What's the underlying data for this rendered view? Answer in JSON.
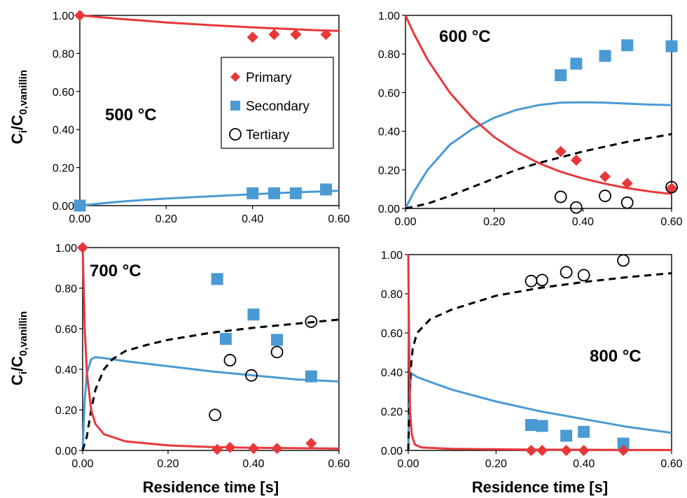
{
  "chart_data": {
    "type": "scatter",
    "ylabel": {
      "main": "C",
      "sub1": "i",
      "mid": "/C",
      "sub2": "0,vanillin"
    },
    "xlabel": "Residence time [s]",
    "legend": {
      "placement": "inside panel 1, right",
      "entries": [
        {
          "name": "Primary",
          "marker": "diamond",
          "color": "#e8373a"
        },
        {
          "name": "Secondary",
          "marker": "square",
          "color": "#4a9ad4"
        },
        {
          "name": "Tertiary",
          "marker": "open-circle",
          "color": "#000000"
        }
      ]
    },
    "colors": {
      "primary": "#e8373a",
      "secondary": "#4a9ad4",
      "tertiary": "#000000"
    },
    "xlim": [
      0,
      0.6
    ],
    "ylim": [
      0,
      1.0
    ],
    "x_ticks": [
      "0.00",
      "0.20",
      "0.40",
      "0.60"
    ],
    "y_ticks": [
      "0.00",
      "0.20",
      "0.40",
      "0.60",
      "0.80",
      "1.00"
    ],
    "panels": [
      {
        "id": "p500",
        "label": "500 °C",
        "show_xlabel": false,
        "primary_points": [
          [
            0.0,
            1.0
          ],
          [
            0.4,
            0.885
          ],
          [
            0.45,
            0.9
          ],
          [
            0.5,
            0.9
          ],
          [
            0.57,
            0.9
          ]
        ],
        "secondary_points": [
          [
            0.0,
            0.0
          ],
          [
            0.4,
            0.065
          ],
          [
            0.45,
            0.065
          ],
          [
            0.5,
            0.065
          ],
          [
            0.57,
            0.085
          ]
        ],
        "tertiary_points": [],
        "primary_curve": [
          [
            0.0,
            1.0
          ],
          [
            0.05,
            0.99
          ],
          [
            0.1,
            0.98
          ],
          [
            0.15,
            0.972
          ],
          [
            0.2,
            0.963
          ],
          [
            0.25,
            0.956
          ],
          [
            0.3,
            0.949
          ],
          [
            0.35,
            0.943
          ],
          [
            0.4,
            0.937
          ],
          [
            0.45,
            0.932
          ],
          [
            0.5,
            0.927
          ],
          [
            0.55,
            0.922
          ],
          [
            0.6,
            0.918
          ]
        ],
        "secondary_curve": [
          [
            0.0,
            0.0
          ],
          [
            0.05,
            0.012
          ],
          [
            0.1,
            0.022
          ],
          [
            0.15,
            0.03
          ],
          [
            0.2,
            0.037
          ],
          [
            0.25,
            0.043
          ],
          [
            0.3,
            0.049
          ],
          [
            0.35,
            0.054
          ],
          [
            0.4,
            0.06
          ],
          [
            0.45,
            0.065
          ],
          [
            0.5,
            0.07
          ],
          [
            0.55,
            0.074
          ],
          [
            0.6,
            0.078
          ]
        ],
        "tertiary_curve": []
      },
      {
        "id": "p600",
        "label": "600 °C",
        "show_xlabel": false,
        "primary_points": [
          [
            0.35,
            0.295
          ],
          [
            0.385,
            0.25
          ],
          [
            0.45,
            0.165
          ],
          [
            0.5,
            0.13
          ],
          [
            0.6,
            0.105
          ]
        ],
        "secondary_points": [
          [
            0.35,
            0.69
          ],
          [
            0.385,
            0.75
          ],
          [
            0.45,
            0.79
          ],
          [
            0.5,
            0.845
          ],
          [
            0.6,
            0.84
          ]
        ],
        "tertiary_points": [
          [
            0.35,
            0.06
          ],
          [
            0.385,
            0.005
          ],
          [
            0.45,
            0.065
          ],
          [
            0.5,
            0.03
          ],
          [
            0.6,
            0.11
          ]
        ],
        "primary_curve": [
          [
            0.0,
            1.0
          ],
          [
            0.02,
            0.9
          ],
          [
            0.05,
            0.77
          ],
          [
            0.1,
            0.6
          ],
          [
            0.15,
            0.47
          ],
          [
            0.2,
            0.37
          ],
          [
            0.25,
            0.295
          ],
          [
            0.3,
            0.235
          ],
          [
            0.35,
            0.19
          ],
          [
            0.4,
            0.155
          ],
          [
            0.45,
            0.128
          ],
          [
            0.5,
            0.105
          ],
          [
            0.55,
            0.088
          ],
          [
            0.6,
            0.075
          ]
        ],
        "secondary_curve": [
          [
            0.0,
            0.0
          ],
          [
            0.02,
            0.09
          ],
          [
            0.05,
            0.2
          ],
          [
            0.1,
            0.33
          ],
          [
            0.15,
            0.41
          ],
          [
            0.2,
            0.47
          ],
          [
            0.25,
            0.51
          ],
          [
            0.3,
            0.535
          ],
          [
            0.35,
            0.548
          ],
          [
            0.4,
            0.55
          ],
          [
            0.45,
            0.548
          ],
          [
            0.5,
            0.543
          ],
          [
            0.55,
            0.538
          ],
          [
            0.6,
            0.535
          ]
        ],
        "tertiary_curve": [
          [
            0.0,
            0.0
          ],
          [
            0.05,
            0.025
          ],
          [
            0.1,
            0.065
          ],
          [
            0.15,
            0.11
          ],
          [
            0.2,
            0.155
          ],
          [
            0.25,
            0.2
          ],
          [
            0.3,
            0.235
          ],
          [
            0.35,
            0.265
          ],
          [
            0.4,
            0.295
          ],
          [
            0.45,
            0.32
          ],
          [
            0.5,
            0.345
          ],
          [
            0.55,
            0.365
          ],
          [
            0.6,
            0.385
          ]
        ]
      },
      {
        "id": "p700",
        "label": "700 °C",
        "show_xlabel": true,
        "primary_points": [
          [
            0.0,
            1.0
          ],
          [
            0.315,
            0.005
          ],
          [
            0.345,
            0.015
          ],
          [
            0.4,
            0.01
          ],
          [
            0.455,
            0.01
          ],
          [
            0.535,
            0.035
          ]
        ],
        "secondary_points": [
          [
            0.315,
            0.845
          ],
          [
            0.335,
            0.55
          ],
          [
            0.4,
            0.67
          ],
          [
            0.455,
            0.545
          ],
          [
            0.535,
            0.365
          ]
        ],
        "tertiary_points": [
          [
            0.31,
            0.175
          ],
          [
            0.345,
            0.445
          ],
          [
            0.395,
            0.37
          ],
          [
            0.455,
            0.485
          ],
          [
            0.535,
            0.635
          ]
        ],
        "primary_curve": [
          [
            0.0,
            1.0
          ],
          [
            0.002,
            0.85
          ],
          [
            0.005,
            0.6
          ],
          [
            0.01,
            0.38
          ],
          [
            0.02,
            0.2
          ],
          [
            0.03,
            0.13
          ],
          [
            0.05,
            0.08
          ],
          [
            0.1,
            0.045
          ],
          [
            0.2,
            0.025
          ],
          [
            0.3,
            0.017
          ],
          [
            0.4,
            0.013
          ],
          [
            0.5,
            0.011
          ],
          [
            0.6,
            0.009
          ]
        ],
        "secondary_curve": [
          [
            0.0,
            0.0
          ],
          [
            0.005,
            0.25
          ],
          [
            0.01,
            0.38
          ],
          [
            0.02,
            0.45
          ],
          [
            0.03,
            0.46
          ],
          [
            0.05,
            0.455
          ],
          [
            0.1,
            0.44
          ],
          [
            0.2,
            0.415
          ],
          [
            0.3,
            0.39
          ],
          [
            0.4,
            0.37
          ],
          [
            0.5,
            0.35
          ],
          [
            0.6,
            0.34
          ]
        ],
        "tertiary_curve": [
          [
            0.0,
            0.0
          ],
          [
            0.01,
            0.07
          ],
          [
            0.02,
            0.2
          ],
          [
            0.03,
            0.3
          ],
          [
            0.05,
            0.4
          ],
          [
            0.07,
            0.45
          ],
          [
            0.1,
            0.49
          ],
          [
            0.15,
            0.52
          ],
          [
            0.2,
            0.545
          ],
          [
            0.3,
            0.58
          ],
          [
            0.4,
            0.605
          ],
          [
            0.5,
            0.625
          ],
          [
            0.6,
            0.645
          ]
        ]
      },
      {
        "id": "p800",
        "label": "800 °C",
        "show_xlabel": true,
        "primary_points": [
          [
            0.28,
            0.0
          ],
          [
            0.305,
            0.0
          ],
          [
            0.36,
            0.0
          ],
          [
            0.4,
            0.0
          ],
          [
            0.49,
            0.0
          ]
        ],
        "secondary_points": [
          [
            0.28,
            0.13
          ],
          [
            0.305,
            0.125
          ],
          [
            0.36,
            0.075
          ],
          [
            0.4,
            0.095
          ],
          [
            0.49,
            0.035
          ]
        ],
        "tertiary_points": [
          [
            0.28,
            0.865
          ],
          [
            0.305,
            0.87
          ],
          [
            0.36,
            0.91
          ],
          [
            0.4,
            0.895
          ],
          [
            0.49,
            0.97
          ]
        ],
        "primary_curve": [
          [
            0.0,
            1.0
          ],
          [
            0.002,
            0.5
          ],
          [
            0.004,
            0.2
          ],
          [
            0.008,
            0.08
          ],
          [
            0.015,
            0.03
          ],
          [
            0.03,
            0.015
          ],
          [
            0.1,
            0.008
          ],
          [
            0.3,
            0.004
          ],
          [
            0.6,
            0.002
          ]
        ],
        "secondary_curve": [
          [
            0.0,
            0.0
          ],
          [
            0.003,
            0.3
          ],
          [
            0.006,
            0.38
          ],
          [
            0.01,
            0.39
          ],
          [
            0.02,
            0.375
          ],
          [
            0.05,
            0.35
          ],
          [
            0.1,
            0.31
          ],
          [
            0.2,
            0.25
          ],
          [
            0.3,
            0.2
          ],
          [
            0.4,
            0.16
          ],
          [
            0.5,
            0.12
          ],
          [
            0.6,
            0.09
          ]
        ],
        "tertiary_curve": [
          [
            0.0,
            0.0
          ],
          [
            0.002,
            0.2
          ],
          [
            0.005,
            0.4
          ],
          [
            0.01,
            0.52
          ],
          [
            0.02,
            0.6
          ],
          [
            0.05,
            0.67
          ],
          [
            0.1,
            0.72
          ],
          [
            0.2,
            0.79
          ],
          [
            0.3,
            0.83
          ],
          [
            0.4,
            0.86
          ],
          [
            0.5,
            0.885
          ],
          [
            0.6,
            0.905
          ]
        ]
      }
    ]
  }
}
